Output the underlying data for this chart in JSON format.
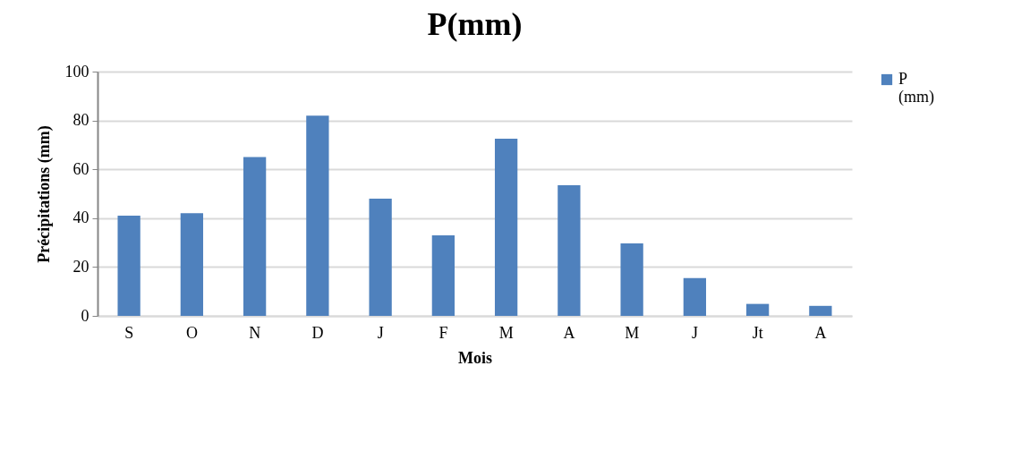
{
  "chart_data": {
    "type": "bar",
    "title": "P(mm)",
    "xlabel": "Mois",
    "ylabel": "Précipitations (mm)",
    "categories": [
      "S",
      "O",
      "N",
      "D",
      "J",
      "F",
      "M",
      "A",
      "M",
      "J",
      "Jt",
      "A"
    ],
    "series": [
      {
        "name": "P (mm)",
        "color": "#4f81bd",
        "values": [
          41,
          42,
          65,
          82,
          48,
          33,
          72.5,
          53.5,
          29.7,
          15.5,
          4.9,
          4.1
        ]
      }
    ],
    "ylim": [
      0,
      100
    ],
    "yticks": [
      0,
      20,
      40,
      60,
      80,
      100
    ],
    "grid": "y",
    "legend": "right"
  }
}
